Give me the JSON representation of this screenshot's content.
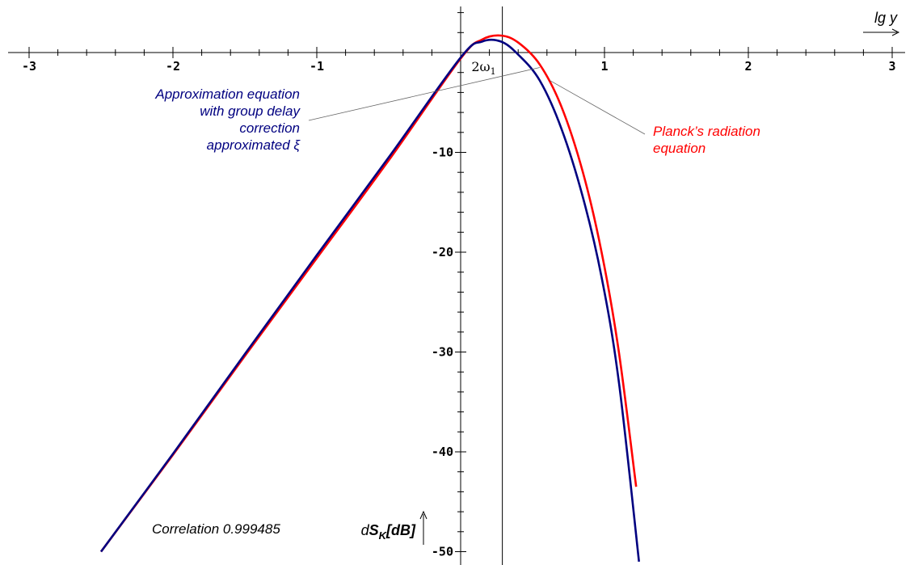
{
  "chart_data": {
    "type": "line",
    "xlabel": "lg y",
    "ylabel_prefix": "d",
    "ylabel_main": "S",
    "ylabel_sub": "K",
    "ylabel_suffix": "[dB]",
    "xlim": [
      -3.1,
      3.1
    ],
    "ylim": [
      -51,
      5
    ],
    "x_ticks": [
      -3,
      -2,
      -1,
      1,
      2,
      3
    ],
    "x_tick_labels": [
      "-3",
      "-2",
      "-1",
      "1",
      "2",
      "3"
    ],
    "y_ticks": [
      -10,
      -20,
      -30,
      -40,
      -50
    ],
    "y_tick_labels": [
      "-10",
      "-20",
      "-30",
      "-40",
      "-50"
    ],
    "marker_label": "2ω",
    "marker_sub": "1",
    "marker_x": 0.29,
    "colors": {
      "planck": "#ff0000",
      "approx": "#000080"
    },
    "series": [
      {
        "key": "planck",
        "x": [
          -2.5,
          -2.0,
          -1.5,
          -1.0,
          -0.5,
          0.0,
          0.15,
          0.28,
          0.4,
          0.55,
          0.7,
          0.85,
          0.98,
          1.1,
          1.22
        ],
        "y": [
          -50.0,
          -40.3,
          -30.4,
          -20.6,
          -10.8,
          -0.6,
          1.3,
          1.7,
          1.0,
          -1.2,
          -5.4,
          -12.0,
          -20.0,
          -30.0,
          -43.5
        ]
      },
      {
        "key": "approx",
        "x": [
          -2.5,
          -2.0,
          -1.5,
          -1.0,
          -0.5,
          0.0,
          0.15,
          0.28,
          0.4,
          0.55,
          0.7,
          0.85,
          0.98,
          1.1,
          1.24
        ],
        "y": [
          -50.0,
          -40.2,
          -30.2,
          -20.3,
          -10.5,
          -0.5,
          1.1,
          1.1,
          -0.2,
          -2.8,
          -7.6,
          -14.5,
          -22.5,
          -33.0,
          -51.0
        ]
      }
    ],
    "annotations": [
      {
        "key": "approx",
        "lines": [
          "Approximation equation",
          "with group delay",
          "correction",
          "approximated ξ"
        ],
        "anchor": [
          0.55,
          -1.5
        ]
      },
      {
        "key": "planck",
        "lines": [
          "Planck’s radiation",
          "equation"
        ],
        "anchor": [
          0.62,
          -2.8
        ]
      }
    ],
    "correlation_text": "Correlation 0.999485"
  }
}
